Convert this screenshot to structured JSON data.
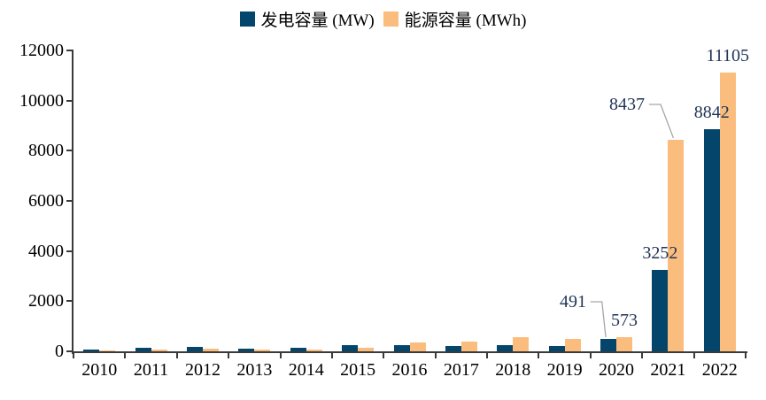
{
  "chart_data": {
    "type": "bar",
    "title": "",
    "categories": [
      "2010",
      "2011",
      "2012",
      "2013",
      "2014",
      "2015",
      "2016",
      "2017",
      "2018",
      "2019",
      "2020",
      "2021",
      "2022"
    ],
    "series": [
      {
        "name": "发电容量 (MW)",
        "color": "#04466B",
        "values": [
          80,
          125,
          190,
          120,
          130,
          260,
          260,
          200,
          260,
          215,
          491,
          3252,
          8842
        ]
      },
      {
        "name": "能源容量 (MWh)",
        "color": "#FBBD7D",
        "values": [
          40,
          70,
          115,
          60,
          70,
          140,
          360,
          390,
          565,
          505,
          573,
          8437,
          11105
        ]
      }
    ],
    "ylim": [
      0,
      12000
    ],
    "yticks": [
      "0",
      "2000",
      "4000",
      "6000",
      "8000",
      "10000",
      "12000"
    ],
    "grid": false,
    "legend_position": "top-center",
    "axis_color": "#3a3a3a",
    "label_color": "#1F3455",
    "leader_line_color": "#A6A6A6",
    "data_labels": [
      {
        "category": "2020",
        "series": 0,
        "text": "491",
        "callout": true
      },
      {
        "category": "2020",
        "series": 1,
        "text": "573",
        "callout": false
      },
      {
        "category": "2021",
        "series": 0,
        "text": "3252",
        "callout": false
      },
      {
        "category": "2021",
        "series": 1,
        "text": "8437",
        "callout": true
      },
      {
        "category": "2022",
        "series": 0,
        "text": "8842",
        "callout": false
      },
      {
        "category": "2022",
        "series": 1,
        "text": "11105",
        "callout": false
      }
    ]
  }
}
